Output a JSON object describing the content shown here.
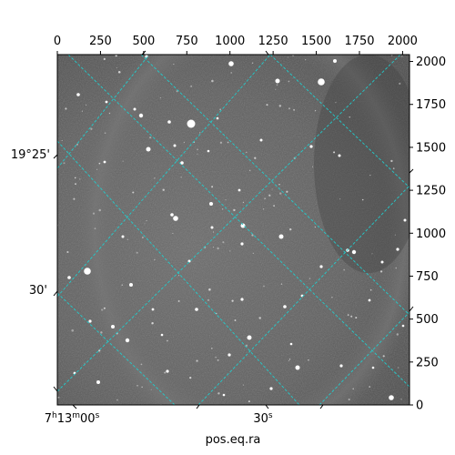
{
  "figure": {
    "xlabel": "pos.eq.ra",
    "ylabel": ""
  },
  "pixel_axes": {
    "x_ticks": [
      "0",
      "250",
      "500",
      "750",
      "1000",
      "1250",
      "1500",
      "1750",
      "2000"
    ],
    "y_ticks": [
      "0",
      "250",
      "500",
      "750",
      "1000",
      "1250",
      "1500",
      "1750",
      "2000"
    ],
    "x_range": [
      0,
      2040
    ],
    "y_range": [
      0,
      2040
    ]
  },
  "world_axes": {
    "ra_ticks": [
      {
        "h": "7",
        "m": "13",
        "s": "00"
      },
      {
        "h": "",
        "m": "",
        "s": "30"
      }
    ],
    "dec_ticks": [
      "19°25'",
      "30'"
    ]
  },
  "colors": {
    "grid": "#22cccc",
    "background": "#ffffff",
    "frame": "#000000"
  }
}
